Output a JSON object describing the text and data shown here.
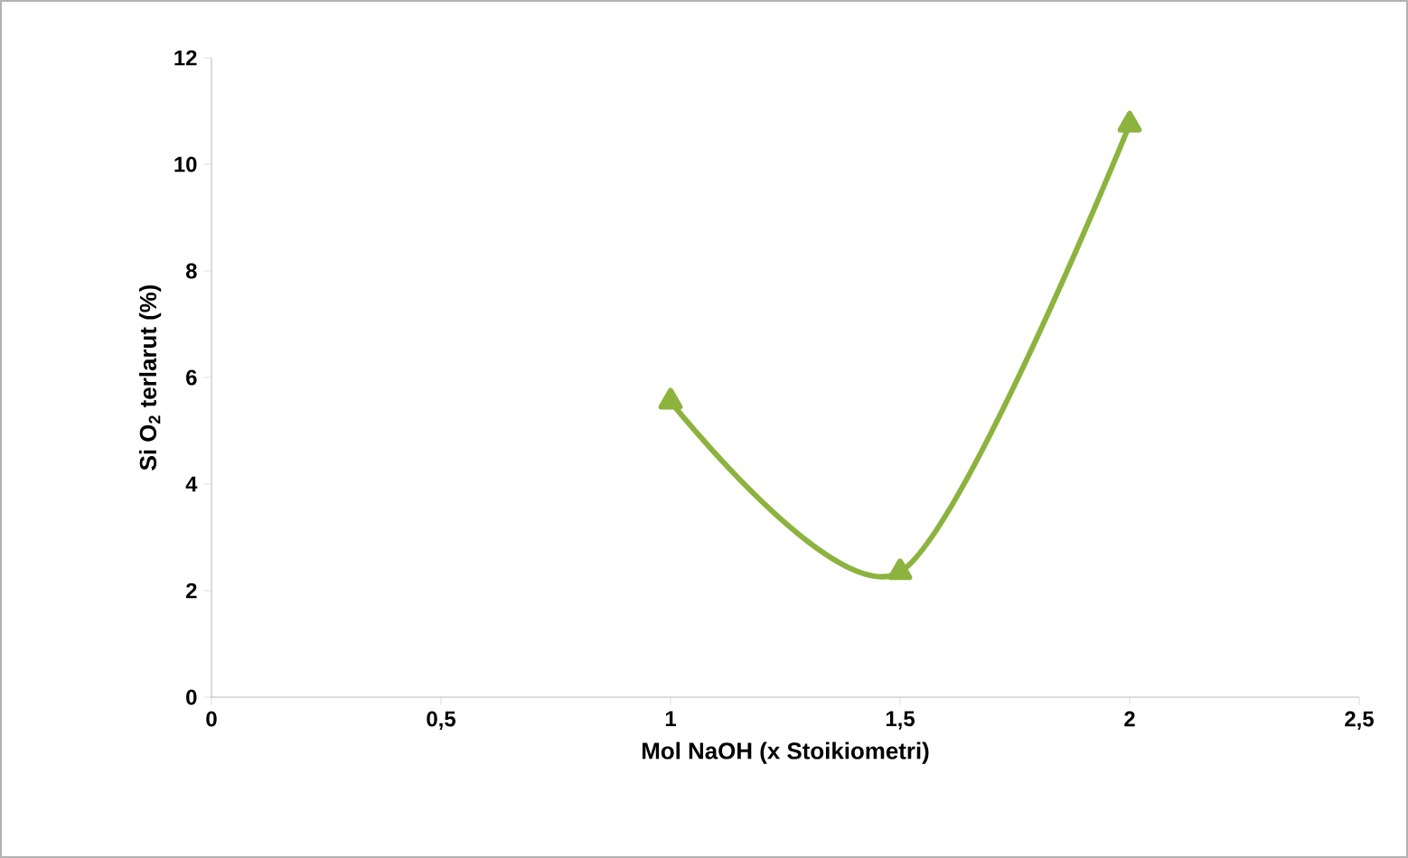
{
  "chart_data": {
    "type": "line",
    "xlabel": "Mol NaOH (x Stoikiometri)",
    "ylabel": "Si O$_{2}$ terlarut (%)",
    "x": [
      1,
      1.5,
      2
    ],
    "series": [
      {
        "color": "#8db33f",
        "values": [
          5.55,
          2.35,
          10.75
        ]
      }
    ],
    "xlim": [
      0,
      2.5
    ],
    "xticks": [
      0,
      {
        "value": 0.5,
        "label": "0,5"
      },
      1,
      {
        "value": 1.5,
        "label": "1,5"
      },
      2,
      {
        "value": 2.5,
        "label": "2,5"
      }
    ],
    "ylim": [
      0,
      12
    ],
    "yticks": [
      0,
      2,
      4,
      6,
      8,
      10,
      12
    ],
    "marker": "triangle",
    "line_style": "solid"
  }
}
